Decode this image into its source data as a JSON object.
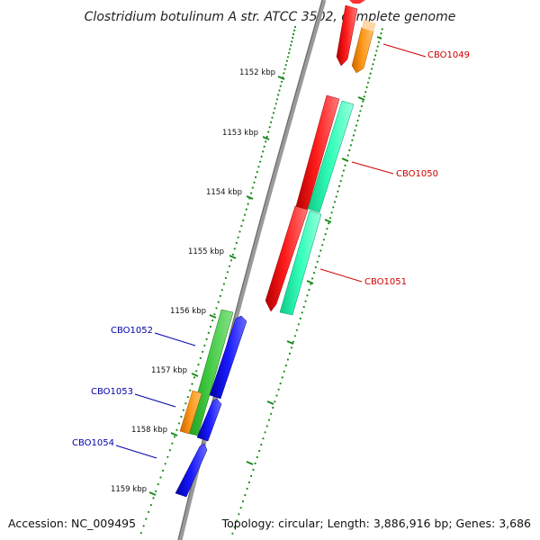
{
  "title": "Clostridium botulinum A str. ATCC 3502, complete genome",
  "footer": {
    "accession": "Accession: NC_009495",
    "topology": "Topology: circular; Length: 3,886,916 bp; Genes: 3,686"
  },
  "colors": {
    "backbone": "#808080",
    "tick": "#1a8a1a",
    "forward_label": "#cc0000",
    "reverse_label": "#0000aa"
  },
  "kbp_labels": [
    "1152 kbp",
    "1153 kbp",
    "1154 kbp",
    "1155 kbp",
    "1156 kbp",
    "1157 kbp",
    "1158 kbp",
    "1159 kbp"
  ],
  "genes": [
    {
      "label": "CBO1049",
      "strand": "forward",
      "color": "#ff0000"
    },
    {
      "label": "CBO1050",
      "strand": "forward",
      "color": "#ff0000"
    },
    {
      "label": "CBO1051",
      "strand": "forward",
      "color": "#ff0000"
    },
    {
      "label": "CBO1052",
      "strand": "reverse",
      "color": "#33bb33"
    },
    {
      "label": "CBO1053",
      "strand": "reverse",
      "color": "#ff8800"
    },
    {
      "label": "CBO1054",
      "strand": "reverse",
      "color": "#0000dd"
    }
  ]
}
